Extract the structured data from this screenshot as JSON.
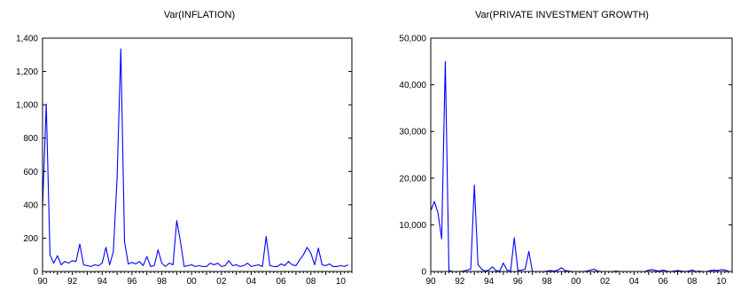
{
  "chart_data": [
    {
      "type": "line",
      "title": "Var(INFLATION)",
      "xlabel": "",
      "ylabel": "",
      "x_start": 1990.0,
      "x_step": 0.25,
      "xlim": [
        1990,
        2010.75
      ],
      "ylim": [
        0,
        1400
      ],
      "y_ticks": [
        0,
        200,
        400,
        600,
        800,
        1000,
        1200,
        1400
      ],
      "y_tick_labels": [
        "0",
        "200",
        "400",
        "600",
        "800",
        "1,000",
        "1,200",
        "1,400"
      ],
      "x_ticks": [
        1990,
        1992,
        1994,
        1996,
        1998,
        2000,
        2002,
        2004,
        2006,
        2008,
        2010
      ],
      "x_tick_labels": [
        "90",
        "92",
        "94",
        "96",
        "98",
        "00",
        "02",
        "04",
        "06",
        "08",
        "10"
      ],
      "grid": false,
      "series": [
        {
          "color": "#0000ff",
          "values": [
            380,
            1005,
            100,
            50,
            95,
            40,
            60,
            50,
            65,
            60,
            165,
            40,
            35,
            30,
            40,
            35,
            50,
            145,
            40,
            120,
            560,
            1335,
            180,
            45,
            55,
            45,
            60,
            35,
            90,
            30,
            35,
            130,
            50,
            30,
            50,
            40,
            305,
            180,
            30,
            35,
            40,
            30,
            35,
            30,
            30,
            50,
            40,
            50,
            30,
            35,
            65,
            35,
            40,
            30,
            35,
            50,
            30,
            35,
            40,
            30,
            210,
            35,
            30,
            30,
            45,
            35,
            60,
            40,
            35,
            70,
            100,
            145,
            110,
            40,
            140,
            40,
            35,
            45,
            30,
            30,
            35,
            30,
            40
          ]
        }
      ]
    },
    {
      "type": "line",
      "title": "Var(PRIVATE INVESTMENT GROWTH)",
      "xlabel": "",
      "ylabel": "",
      "x_start": 1990.0,
      "x_step": 0.25,
      "xlim": [
        1990,
        2010.75
      ],
      "ylim": [
        0,
        50000
      ],
      "y_ticks": [
        0,
        10000,
        20000,
        30000,
        40000,
        50000
      ],
      "y_tick_labels": [
        "0",
        "10,000",
        "20,000",
        "30,000",
        "40,000",
        "50,000"
      ],
      "x_ticks": [
        1990,
        1992,
        1994,
        1996,
        1998,
        2000,
        2002,
        2004,
        2006,
        2008,
        2010
      ],
      "x_tick_labels": [
        "90",
        "92",
        "94",
        "96",
        "98",
        "00",
        "02",
        "04",
        "06",
        "08",
        "10"
      ],
      "grid": false,
      "series": [
        {
          "color": "#0000ff",
          "values": [
            13000,
            15000,
            12500,
            7000,
            45000,
            200,
            0,
            0,
            0,
            100,
            300,
            500,
            18500,
            1500,
            500,
            100,
            300,
            1000,
            200,
            100,
            1800,
            300,
            100,
            7200,
            200,
            300,
            500,
            4300,
            0,
            0,
            0,
            0,
            100,
            200,
            100,
            300,
            800,
            200,
            100,
            0,
            0,
            0,
            0,
            100,
            300,
            500,
            100,
            0,
            0,
            0,
            0,
            100,
            0,
            0,
            0,
            0,
            0,
            0,
            0,
            0,
            300,
            400,
            200,
            100,
            300,
            100,
            0,
            100,
            200,
            100,
            0,
            100,
            300,
            0,
            100,
            0,
            0,
            200,
            300,
            200,
            400,
            300,
            100
          ]
        }
      ]
    }
  ]
}
